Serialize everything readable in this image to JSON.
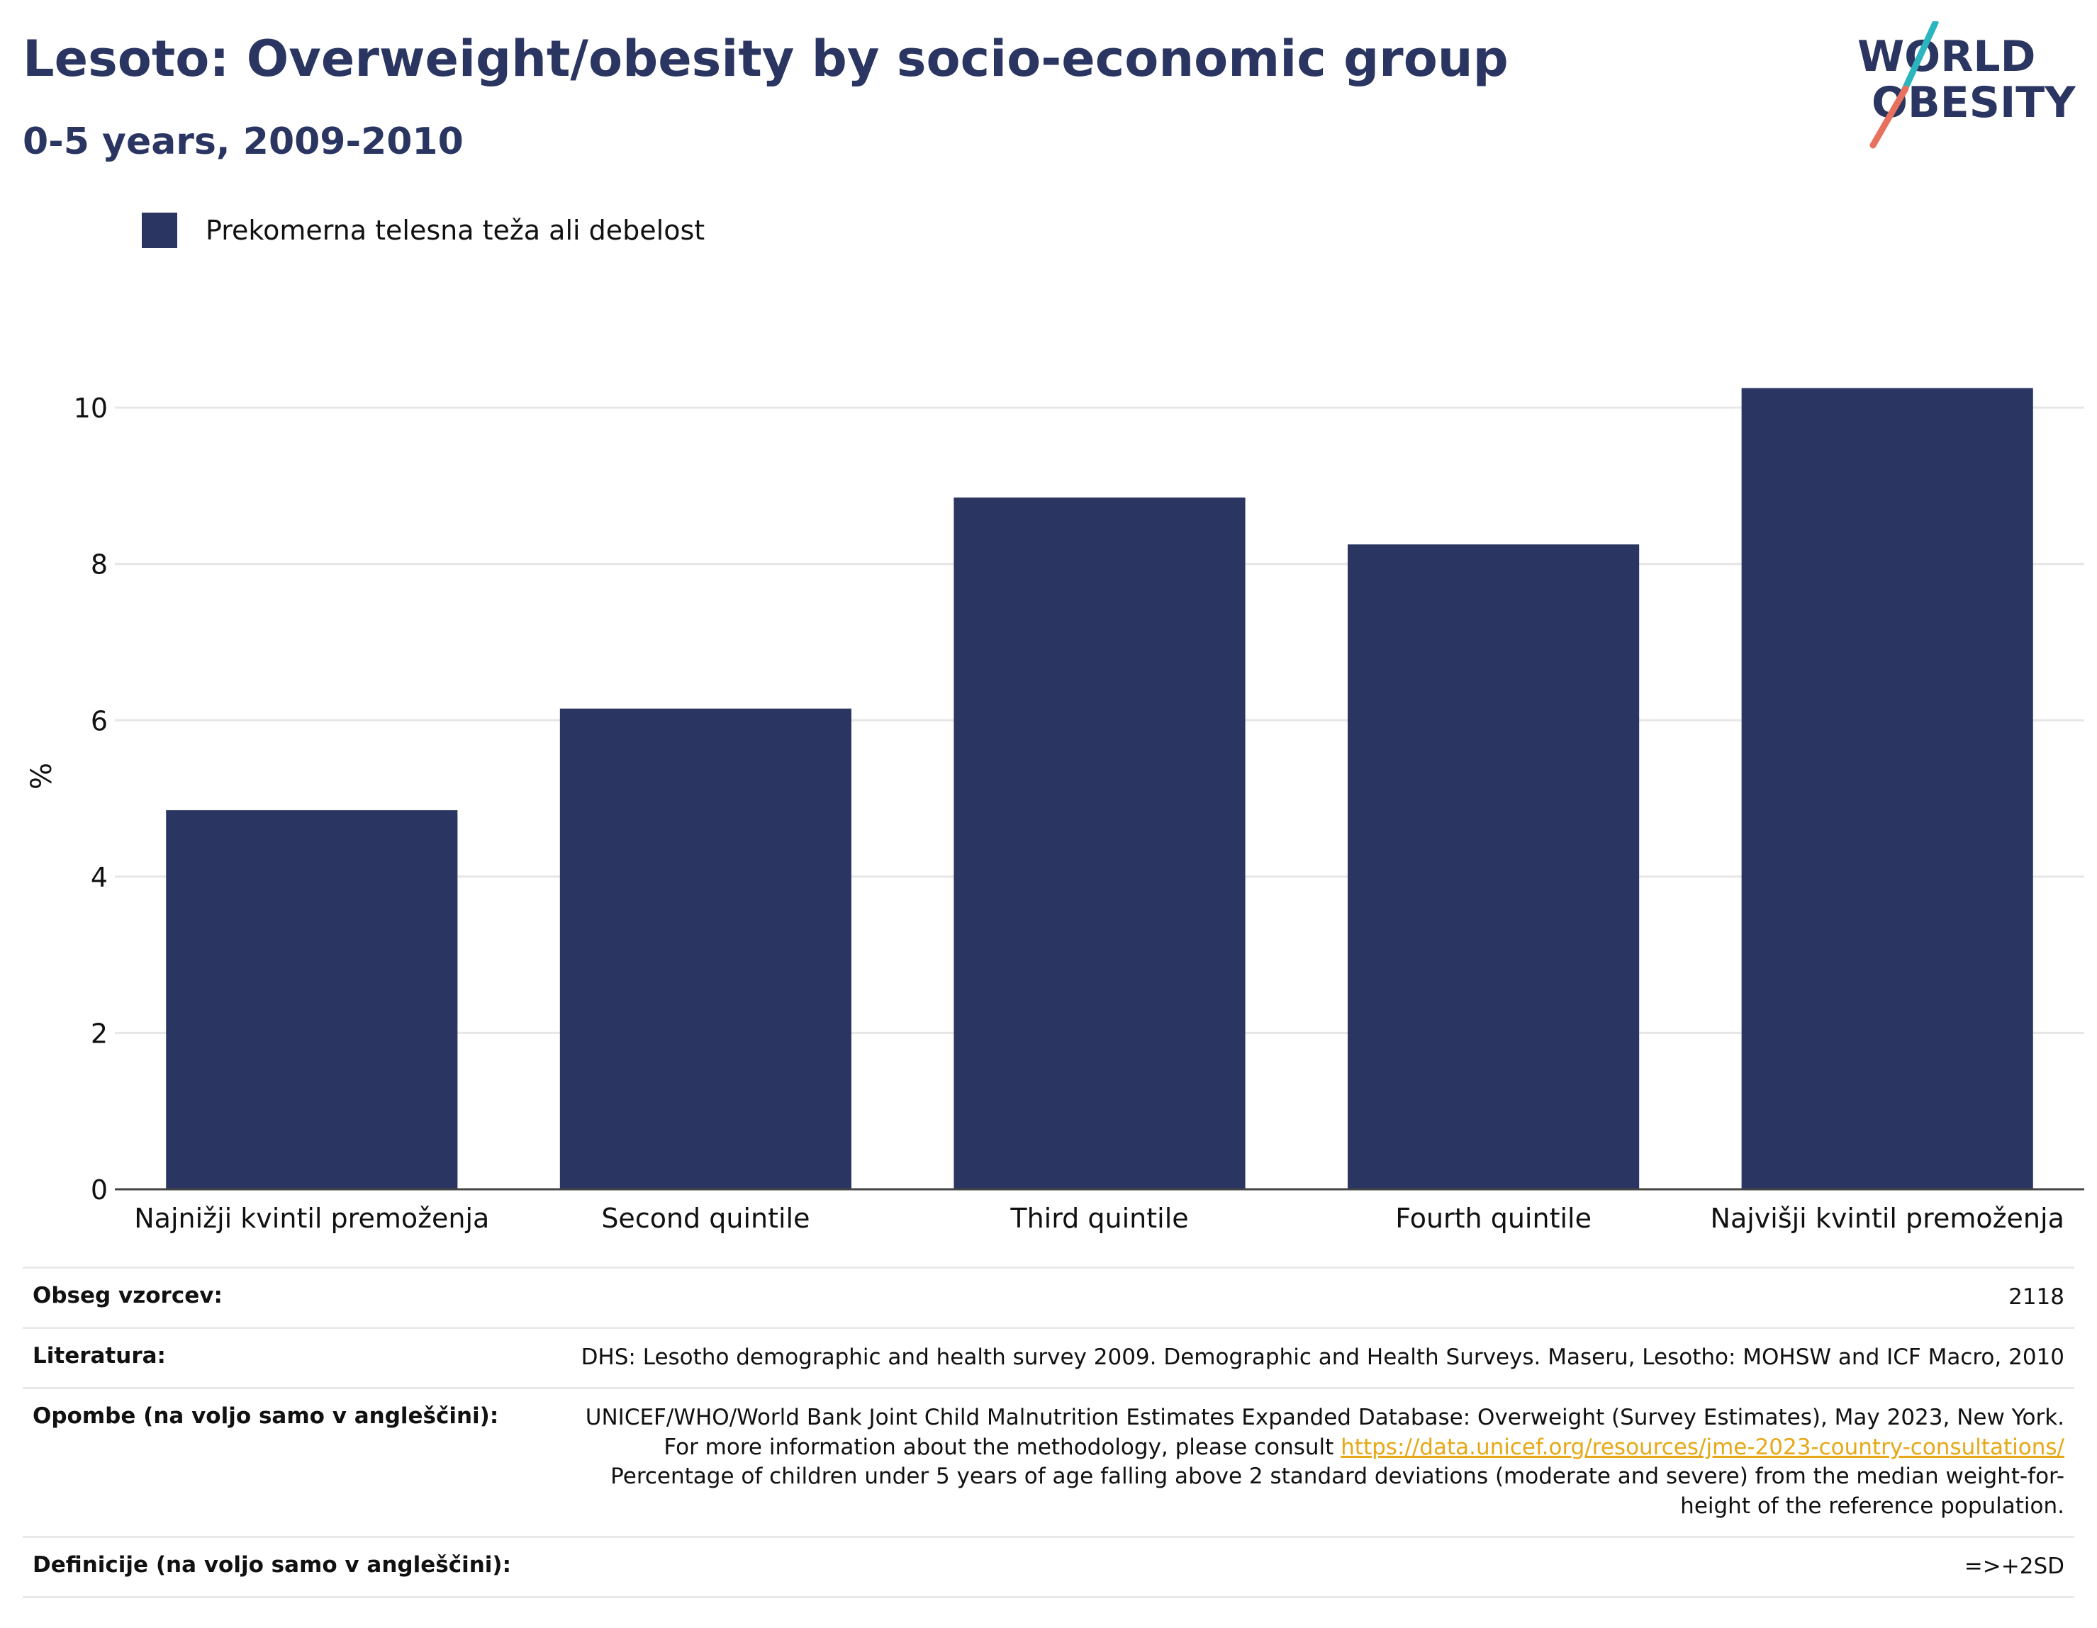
{
  "header": {
    "title": "Lesoto: Overweight/obesity by socio-economic group",
    "subtitle": "0-5 years, 2009-2010",
    "logo_line1": "WORLD",
    "logo_line2": "OBESITY"
  },
  "colors": {
    "bar": "#2a3561",
    "title": "#2a3561",
    "link": "#e6a817",
    "logo_teal": "#2bb5bf",
    "logo_coral": "#e8705f",
    "grid": "#e6e6e6"
  },
  "chart_data": {
    "type": "bar",
    "categories": [
      "Najnižji kvintil premoženja",
      "Second quintile",
      "Third quintile",
      "Fourth quintile",
      "Najvišji kvintil premoženja"
    ],
    "series": [
      {
        "name": "Prekomerna telesna teža ali debelost",
        "values": [
          4.85,
          6.15,
          8.85,
          8.25,
          10.25
        ]
      }
    ],
    "ylabel": "%",
    "ylim": [
      0,
      10.5
    ],
    "yticks": [
      0,
      2,
      4,
      6,
      8,
      10
    ],
    "grid": true,
    "legend_position": "top-left"
  },
  "info": {
    "sample_label": "Obseg vzorcev:",
    "sample_value": "2118",
    "references_label": "Literatura:",
    "references_value": "DHS: Lesotho demographic and health survey 2009. Demographic and Health Surveys. Maseru, Lesotho: MOHSW and ICF Macro, 2010",
    "notes_label": "Opombe (na voljo samo v angleščini):",
    "notes_text_1": "UNICEF/WHO/World Bank Joint Child Malnutrition Estimates Expanded Database: Overweight (Survey Estimates), May 2023, New York. For more information about the methodology, please consult",
    "notes_link": "https://data.unicef.org/resources/jme-2023-country-consultations/",
    "notes_text_2": "Percentage of children under 5 years of age falling above 2 standard deviations (moderate and severe) from the median weight-for-height of the reference population.",
    "definitions_label": "Definicije (na voljo samo v angleščini):",
    "definitions_value": "=>+2SD"
  }
}
